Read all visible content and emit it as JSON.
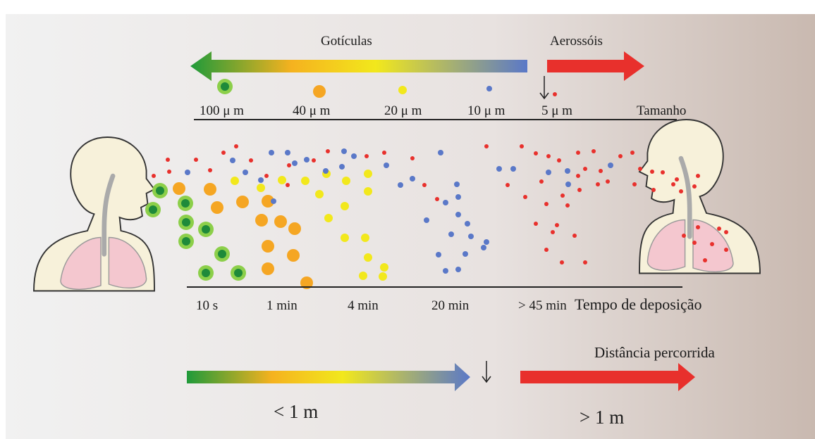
{
  "header": {
    "droplets": "Gotículas",
    "aerosols": "Aerossóis"
  },
  "size": {
    "label": "Tamanho",
    "ticks": [
      "100 μ m",
      "40 μ m",
      "20 μ m",
      "10 μ m",
      "5 μ m"
    ]
  },
  "deposition": {
    "label": "Tempo de deposição",
    "ticks": [
      "10 s",
      "1 min",
      "4 min",
      "20 min",
      "> 45 min"
    ]
  },
  "distance": {
    "label": "Distância percorrida",
    "near": "< 1 m",
    "far": "> 1 m"
  }
}
